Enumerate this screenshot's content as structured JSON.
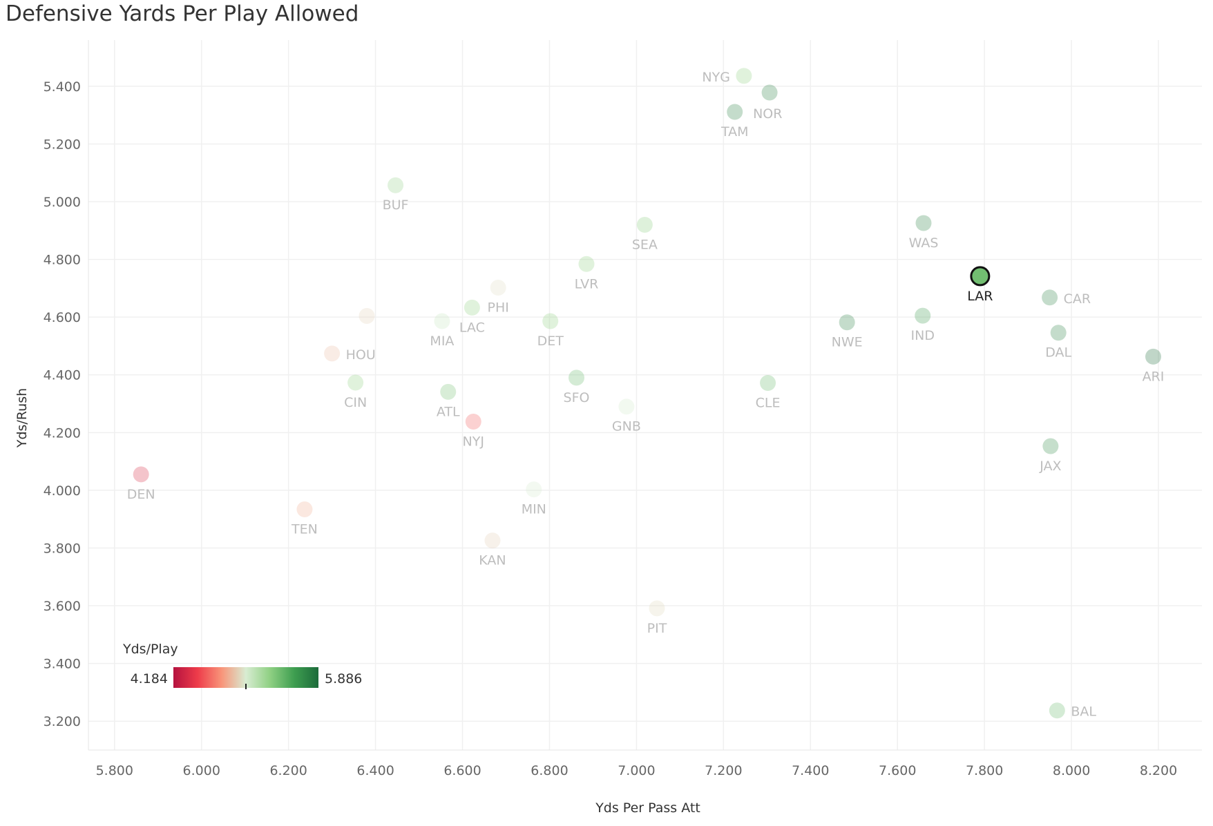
{
  "chart_data": {
    "type": "scatter",
    "title": "Defensive Yards Per Play Allowed",
    "xlabel": "Yds Per Pass Att",
    "ylabel": "Yds/Rush",
    "xlim": [
      5.74,
      8.3
    ],
    "ylim": [
      3.1,
      5.56
    ],
    "x_ticks": [
      "5.800",
      "6.000",
      "6.200",
      "6.400",
      "6.600",
      "6.800",
      "7.000",
      "7.200",
      "7.400",
      "7.600",
      "7.800",
      "8.000",
      "8.200"
    ],
    "y_ticks": [
      "3.200",
      "3.400",
      "3.600",
      "3.800",
      "4.000",
      "4.200",
      "4.400",
      "4.600",
      "4.800",
      "5.000",
      "5.200",
      "5.400"
    ],
    "grid": true,
    "color_legend": {
      "title": "Yds/Play",
      "min_label": "4.184",
      "max_label": "5.886",
      "min": 4.184,
      "max": 5.886,
      "center": 5.0,
      "colors": [
        "#b5123f",
        "#ee3c4a",
        "#f8957a",
        "#d8ecd2",
        "#8fd083",
        "#3e9e50",
        "#1c6b3a"
      ]
    },
    "highlight": "LAR",
    "points": [
      {
        "team": "NYG",
        "x": 7.247,
        "y": 5.436,
        "ypp": 5.3,
        "label_pos": "left"
      },
      {
        "team": "NOR",
        "x": 7.306,
        "y": 5.378,
        "ypp": 5.75,
        "label_pos": "below-right"
      },
      {
        "team": "TAM",
        "x": 7.226,
        "y": 5.311,
        "ypp": 5.75,
        "label_pos": "below"
      },
      {
        "team": "BUF",
        "x": 6.446,
        "y": 5.057,
        "ypp": 5.28,
        "label_pos": "below"
      },
      {
        "team": "SEA",
        "x": 7.019,
        "y": 4.92,
        "ypp": 5.32,
        "label_pos": "below"
      },
      {
        "team": "WAS",
        "x": 7.66,
        "y": 4.926,
        "ypp": 5.75,
        "label_pos": "below"
      },
      {
        "team": "LVR",
        "x": 6.885,
        "y": 4.784,
        "ypp": 5.3,
        "label_pos": "below"
      },
      {
        "team": "LAR",
        "x": 7.79,
        "y": 4.742,
        "ypp": 5.4,
        "label_pos": "below"
      },
      {
        "team": "PHI",
        "x": 6.682,
        "y": 4.702,
        "ypp": 4.95,
        "label_pos": "below"
      },
      {
        "team": "CAR",
        "x": 7.95,
        "y": 4.668,
        "ypp": 5.75,
        "label_pos": "right"
      },
      {
        "team": "LAC",
        "x": 6.622,
        "y": 4.633,
        "ypp": 5.3,
        "label_pos": "below"
      },
      {
        "team": "HOU_dot",
        "x": 6.38,
        "y": 4.604,
        "ypp": 4.92,
        "label_pos": "none"
      },
      {
        "team": "IND",
        "x": 7.658,
        "y": 4.605,
        "ypp": 5.6,
        "label_pos": "below"
      },
      {
        "team": "MIA",
        "x": 6.553,
        "y": 4.586,
        "ypp": 5.07,
        "label_pos": "below"
      },
      {
        "team": "DET",
        "x": 6.802,
        "y": 4.586,
        "ypp": 5.3,
        "label_pos": "below"
      },
      {
        "team": "NWE",
        "x": 7.484,
        "y": 4.582,
        "ypp": 5.75,
        "label_pos": "below"
      },
      {
        "team": "DAL",
        "x": 7.97,
        "y": 4.546,
        "ypp": 5.75,
        "label_pos": "below"
      },
      {
        "team": "HOU",
        "x": 6.3,
        "y": 4.474,
        "ypp": 4.85,
        "label_pos": "right"
      },
      {
        "team": "ARI",
        "x": 8.188,
        "y": 4.463,
        "ypp": 5.886,
        "label_pos": "below"
      },
      {
        "team": "SFO",
        "x": 6.862,
        "y": 4.39,
        "ypp": 5.45,
        "label_pos": "below"
      },
      {
        "team": "CIN",
        "x": 6.354,
        "y": 4.373,
        "ypp": 5.3,
        "label_pos": "below"
      },
      {
        "team": "CLE",
        "x": 7.302,
        "y": 4.372,
        "ypp": 5.45,
        "label_pos": "below"
      },
      {
        "team": "ATL",
        "x": 6.567,
        "y": 4.341,
        "ypp": 5.4,
        "label_pos": "below"
      },
      {
        "team": "GNB",
        "x": 6.977,
        "y": 4.29,
        "ypp": 5.03,
        "label_pos": "below"
      },
      {
        "team": "NYJ",
        "x": 6.625,
        "y": 4.238,
        "ypp": 4.55,
        "label_pos": "below"
      },
      {
        "team": "JAX",
        "x": 7.952,
        "y": 4.153,
        "ypp": 5.7,
        "label_pos": "below"
      },
      {
        "team": "DEN",
        "x": 5.861,
        "y": 4.055,
        "ypp": 4.35,
        "label_pos": "below"
      },
      {
        "team": "MIN",
        "x": 6.764,
        "y": 4.003,
        "ypp": 5.02,
        "label_pos": "below"
      },
      {
        "team": "TEN",
        "x": 6.237,
        "y": 3.934,
        "ypp": 4.8,
        "label_pos": "below"
      },
      {
        "team": "KAN",
        "x": 6.669,
        "y": 3.826,
        "ypp": 4.9,
        "label_pos": "below"
      },
      {
        "team": "PIT",
        "x": 7.047,
        "y": 3.591,
        "ypp": 4.93,
        "label_pos": "below"
      },
      {
        "team": "BAL",
        "x": 7.967,
        "y": 3.237,
        "ypp": 5.45,
        "label_pos": "right"
      }
    ]
  }
}
